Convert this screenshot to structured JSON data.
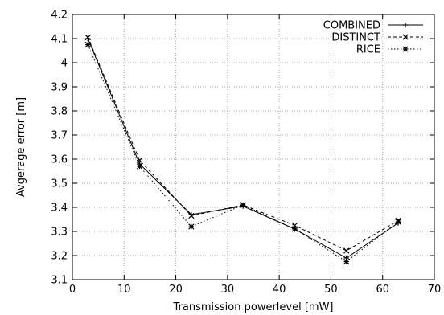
{
  "chart_data": {
    "type": "line",
    "title": "",
    "xlabel": "Transmission powerlevel [mW]",
    "ylabel": "Avgerage error [m]",
    "xlim": [
      0,
      70
    ],
    "ylim": [
      3.1,
      4.2
    ],
    "xticks": [
      "0",
      "10",
      "20",
      "30",
      "40",
      "50",
      "60",
      "70"
    ],
    "yticks": [
      "3.1",
      "3.2",
      "3.3",
      "3.4",
      "3.5",
      "3.6",
      "3.7",
      "3.8",
      "3.9",
      "4",
      "4.1",
      "4.2"
    ],
    "grid": true,
    "legend_position": "top-right",
    "x": [
      3,
      13,
      23,
      33,
      43,
      53,
      63
    ],
    "series": [
      {
        "name": "COMBINED",
        "marker": "plus",
        "dash": "solid",
        "values": [
          4.1,
          3.58,
          3.37,
          3.405,
          3.31,
          3.19,
          3.335
        ]
      },
      {
        "name": "DISTINCT",
        "marker": "cross",
        "dash": "dashed",
        "values": [
          4.105,
          3.595,
          3.365,
          3.41,
          3.325,
          3.22,
          3.345
        ]
      },
      {
        "name": "RICE",
        "marker": "star",
        "dash": "dotted",
        "values": [
          4.075,
          3.57,
          3.32,
          3.41,
          3.31,
          3.175,
          3.34
        ]
      }
    ]
  }
}
